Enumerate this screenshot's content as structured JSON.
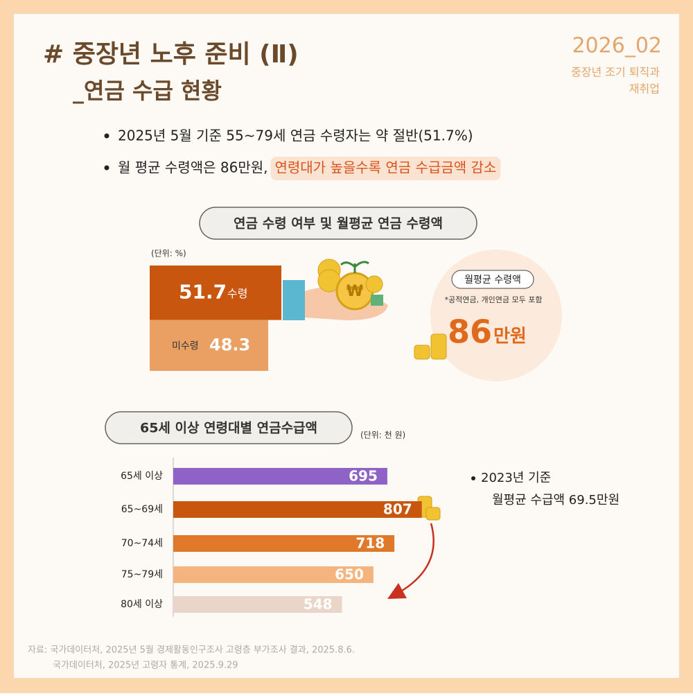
{
  "header": {
    "title": "# 중장년 노후 준비 (Ⅱ)",
    "subtitle": "_연금 수급 현황",
    "issue": "2026_02",
    "series_name": [
      "중장년 조기 퇴직과",
      "재취업"
    ]
  },
  "bullets": [
    [
      "2025년 5월 기준 55~79세 연금 수령자는 약 절반(51.7%)"
    ],
    [
      "월 평균 수령액은 86만원, ",
      "연령대가 높을수록 연금 수급금액 감소"
    ]
  ],
  "chart_data": [
    {
      "type": "bar",
      "stacked": true,
      "title": "연금 수령 여부 및 월평균 연금 수령액",
      "unit": "(단위: %)",
      "categories": [
        "수령",
        "미수령"
      ],
      "values": [
        51.7,
        48.3
      ],
      "colors": [
        "#c8560f",
        "#eba063"
      ],
      "ylim": [
        0,
        100
      ],
      "callout": {
        "label": "월평균 수령액",
        "note": "*공적연금, 개인연금 모두 포함",
        "value": 86,
        "unit": "만원"
      }
    },
    {
      "type": "bar",
      "orientation": "horizontal",
      "title": "65세 이상 연령대별 연금수급액",
      "unit": "(단위: 천 원)",
      "categories": [
        "65세 이상",
        "65~69세",
        "70~74세",
        "75~79세",
        "80세 이상"
      ],
      "values": [
        695,
        807,
        718,
        650,
        548
      ],
      "colors": [
        "#8e62c6",
        "#c8560f",
        "#e07a2a",
        "#f5b47e",
        "#e9d6c8"
      ],
      "xlim": [
        0,
        900
      ],
      "annotation": [
        "2023년 기준",
        "월평균 수급액 69.5만원"
      ]
    }
  ],
  "source": [
    "자료: 국가데이터처, 2025년 5월 경제활동인구조사 고령층 부가조사 결과, 2025.8.6.",
    "국가데이터처, 2025년 고령자 통계, 2025.9.29"
  ]
}
